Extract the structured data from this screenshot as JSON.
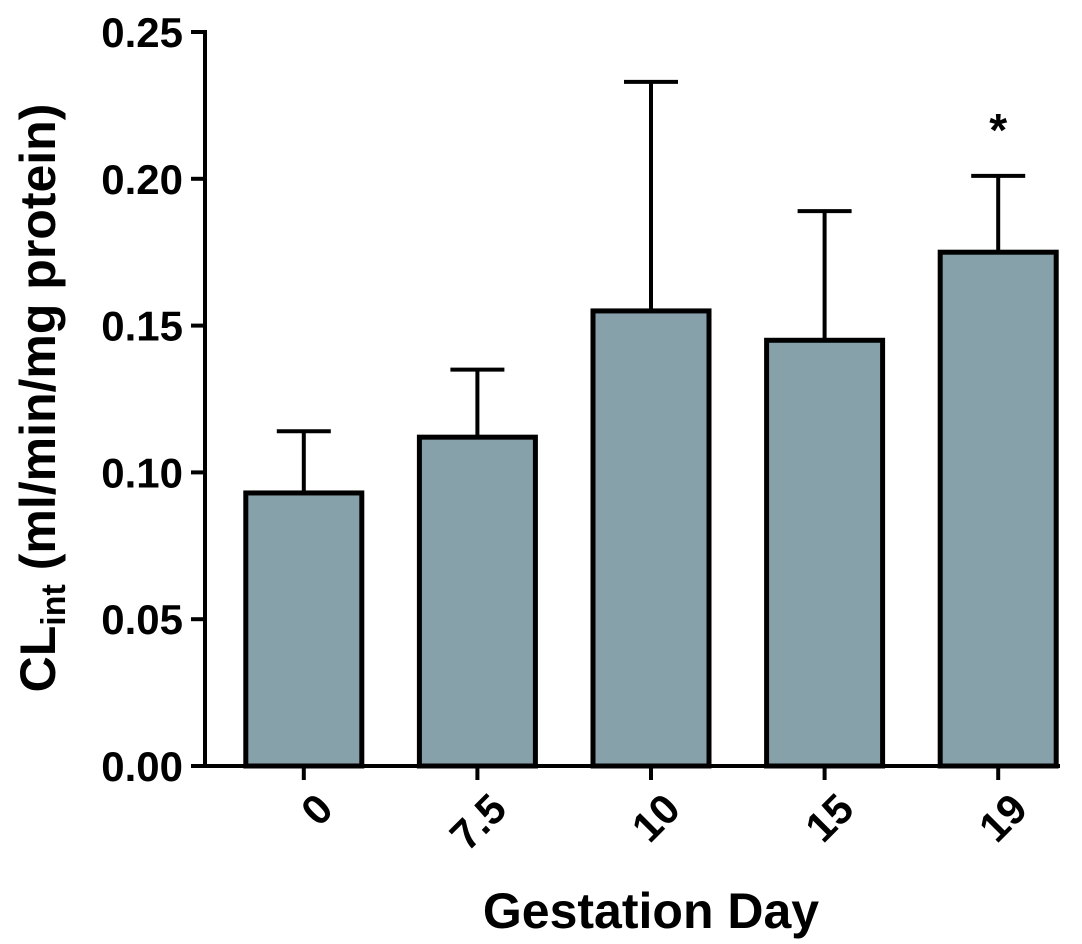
{
  "chart_data": {
    "type": "bar",
    "categories": [
      "0",
      "7.5",
      "10",
      "15",
      "19"
    ],
    "values": [
      0.093,
      0.112,
      0.155,
      0.145,
      0.175
    ],
    "error_upper": [
      0.114,
      0.135,
      0.233,
      0.189,
      0.201
    ],
    "annotations": [
      "",
      "",
      "",
      "",
      "*"
    ],
    "title": "",
    "xlabel": "Gestation Day",
    "ylabel_main": "CL",
    "ylabel_sub": "int",
    "ylabel_rest": " (ml/min/mg protein)",
    "ylim": [
      0,
      0.25
    ],
    "yticks": [
      0.0,
      0.05,
      0.1,
      0.15,
      0.2,
      0.25
    ],
    "ytick_labels": [
      "0.00",
      "0.05",
      "0.10",
      "0.15",
      "0.20",
      "0.25"
    ],
    "grid": false,
    "legend": "none",
    "bar_color": "#87a1ab",
    "edge_color": "#000000"
  }
}
